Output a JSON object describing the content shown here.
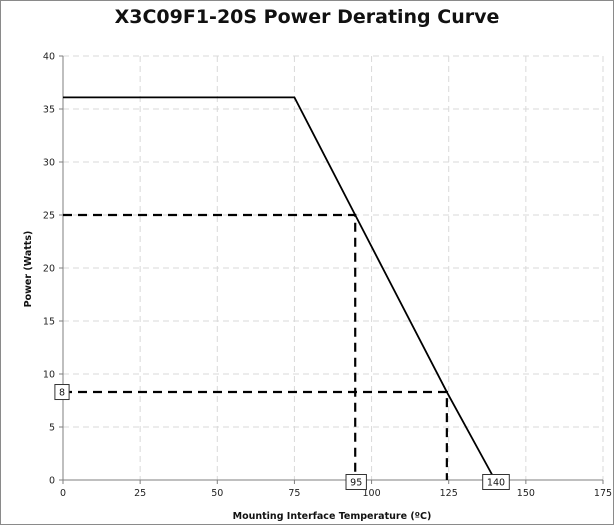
{
  "chart_data": {
    "type": "line",
    "title": "X3C09F1-20S Power Derating Curve",
    "xlabel": "Mounting Interface Temperature (ºC)",
    "ylabel": "Power (Watts)",
    "xlim": [
      0,
      175
    ],
    "ylim": [
      0,
      40
    ],
    "x_ticks": [
      "0",
      "25",
      "50",
      "75",
      "100",
      "125",
      "150",
      "175"
    ],
    "y_ticks": [
      "0",
      "5",
      "10",
      "15",
      "20",
      "25",
      "30",
      "35",
      "40"
    ],
    "grid": true,
    "series": [
      {
        "x": [
          0,
          75,
          94.7,
          124.4,
          140
        ],
        "y": [
          36.1,
          36.1,
          25,
          8.3,
          0
        ]
      }
    ],
    "reference_lines": [
      {
        "x": [
          0,
          94.7,
          94.7
        ],
        "y": [
          25,
          25,
          0
        ]
      },
      {
        "x": [
          0,
          124.4,
          124.4
        ],
        "y": [
          8.3,
          8.3,
          0
        ]
      }
    ],
    "annotations": [
      {
        "text": "8",
        "x": 0,
        "y": 8.3,
        "anchor": "left-of-y-axis"
      },
      {
        "text": "95",
        "x": 94.7,
        "y": 0,
        "anchor": "below"
      },
      {
        "text": "140",
        "x": 140,
        "y": 0,
        "anchor": "below"
      }
    ],
    "colors": {
      "line": "#000000",
      "grid": "#d9d9d9"
    }
  }
}
